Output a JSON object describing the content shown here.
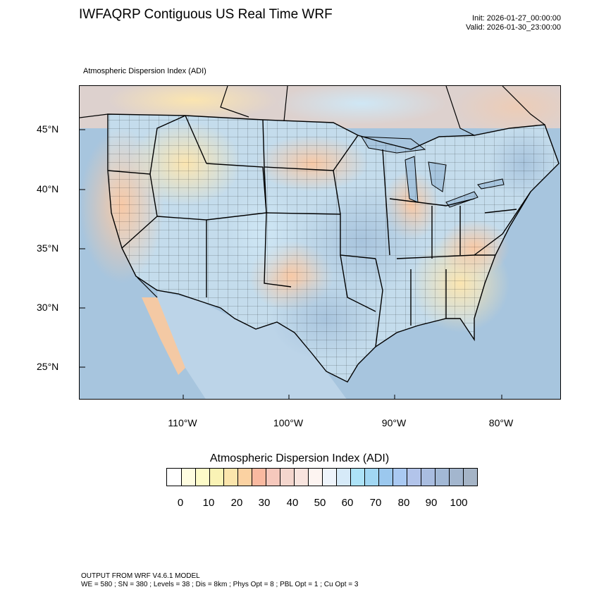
{
  "header": {
    "title": "IWFAQRP Contiguous US Real Time WRF",
    "init": "Init: 2026-01-27_00:00:00",
    "valid": "Valid: 2026-01-30_23:00:00",
    "subtitle": "Atmospheric Dispersion Index   (ADI)"
  },
  "map": {
    "lat_labels": [
      "45°N",
      "40°N",
      "35°N",
      "30°N",
      "25°N"
    ],
    "lon_labels": [
      "110°W",
      "100°W",
      "90°W",
      "80°W"
    ],
    "colors": {
      "ocean": "#a7c5de",
      "land_low": "#fbe3b3",
      "land_mid": "#f9cdbe",
      "land_high": "#b9d7ea",
      "boundary": "#000000"
    }
  },
  "colorbar": {
    "title": "Atmospheric Dispersion Index  (ADI)",
    "labels": [
      "0",
      "10",
      "20",
      "30",
      "40",
      "50",
      "60",
      "70",
      "80",
      "90",
      "100"
    ],
    "colors": [
      "#ffffff",
      "#fffde0",
      "#fdfbc8",
      "#faf3b5",
      "#fbe5ac",
      "#fbd2a2",
      "#f9b9a0",
      "#f6c8bc",
      "#f4d6cd",
      "#f8e4de",
      "#fdf4f1",
      "#eef4fb",
      "#d6eaf8",
      "#ade3f8",
      "#a1d7f3",
      "#9bc8ee",
      "#a9c9f2",
      "#b2c4ea",
      "#a9bde0",
      "#a2b8d5",
      "#a3b6ce",
      "#a5b4c6"
    ]
  },
  "footer": {
    "line1": "OUTPUT FROM WRF V4.6.1 MODEL",
    "line2": "WE = 580 ; SN = 380 ; Levels = 38 ; Dis = 8km ; Phys Opt = 8 ; PBL Opt = 1 ; Cu Opt = 3"
  }
}
